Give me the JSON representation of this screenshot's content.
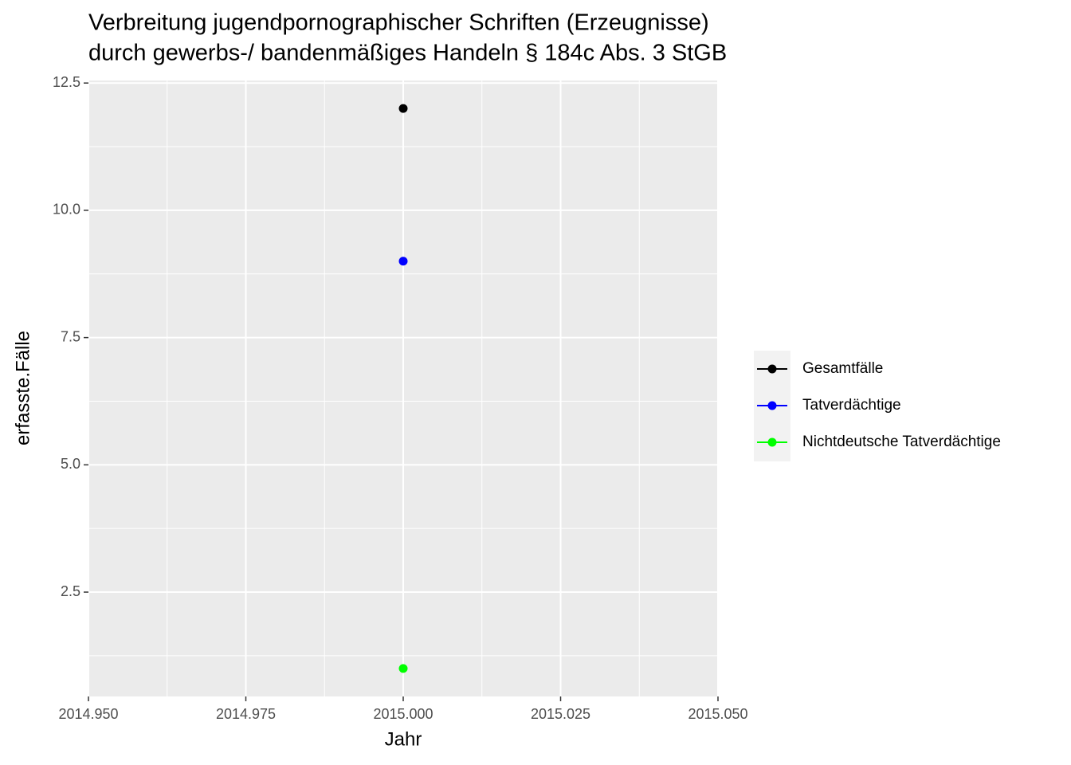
{
  "chart_data": {
    "type": "scatter",
    "title": [
      "Verbreitung jugendpornographischer Schriften (Erzeugnisse)",
      "durch gewerbs-/ bandenmäßiges Handeln § 184c Abs. 3 StGB"
    ],
    "x_label": "Jahr",
    "y_label": "erfasste.Fälle",
    "x": [
      2015
    ],
    "series": [
      {
        "name": "Gesamtfälle",
        "color": "#000000",
        "values": [
          12
        ]
      },
      {
        "name": "Tatverdächtige",
        "color": "#0000ff",
        "values": [
          9
        ]
      },
      {
        "name": "Nichtdeutsche Tatverdächtige",
        "color": "#00ff00",
        "values": [
          1
        ]
      }
    ],
    "xlim": [
      2014.95,
      2015.05
    ],
    "xticks": [
      {
        "value": 2014.95,
        "label": "2014.950"
      },
      {
        "value": 2014.975,
        "label": "2014.975"
      },
      {
        "value": 2015.0,
        "label": "2015.000"
      },
      {
        "value": 2015.025,
        "label": "2015.025"
      },
      {
        "value": 2015.05,
        "label": "2015.050"
      }
    ],
    "ylim": [
      0.45,
      12.55
    ],
    "yticks": [
      2.5,
      {
        "value": 5,
        "label": "5.0"
      },
      7.5,
      {
        "value": 10,
        "label": "10.0"
      },
      12.5
    ],
    "grid": true,
    "legend": "right"
  }
}
